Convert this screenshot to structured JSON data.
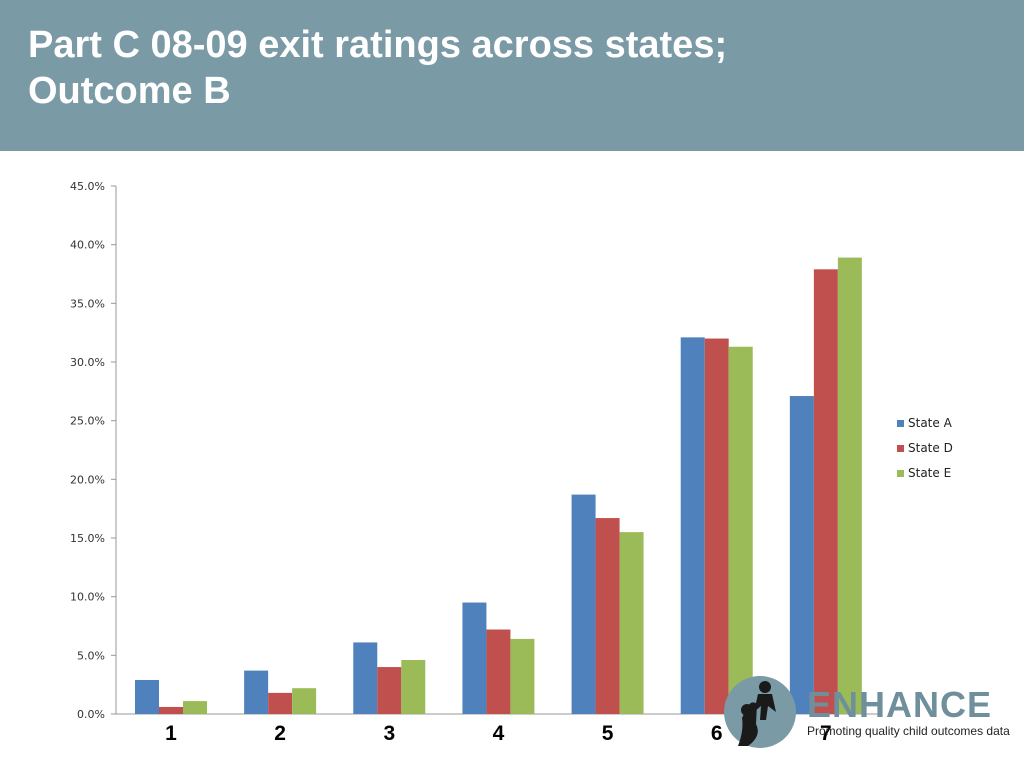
{
  "header": {
    "title_line1": "Part C 08-09 exit ratings across states;",
    "title_line2": "Outcome B"
  },
  "logo": {
    "text": "ENHANCE",
    "tagline": "Promoting quality child outcomes data",
    "icon": "parent-child-silhouette-icon"
  },
  "colors": {
    "header_bg": "#7a9aa6",
    "state_a": "#4f81bd",
    "state_d": "#c0504d",
    "state_e": "#9bbb59"
  },
  "chart_data": {
    "type": "bar",
    "categories": [
      "1",
      "2",
      "3",
      "4",
      "5",
      "6",
      "7"
    ],
    "series": [
      {
        "name": "State A",
        "values": [
          2.9,
          3.7,
          6.1,
          9.5,
          18.7,
          32.1,
          27.1
        ]
      },
      {
        "name": "State D",
        "values": [
          0.6,
          1.8,
          4.0,
          7.2,
          16.7,
          32.0,
          37.9
        ]
      },
      {
        "name": "State E",
        "values": [
          1.1,
          2.2,
          4.6,
          6.4,
          15.5,
          31.3,
          38.9
        ]
      }
    ],
    "y_ticks": [
      "0.0%",
      "5.0%",
      "10.0%",
      "15.0%",
      "20.0%",
      "25.0%",
      "30.0%",
      "35.0%",
      "40.0%",
      "45.0%"
    ],
    "ylim": [
      0,
      45
    ],
    "legend_position": "right",
    "grid": false
  }
}
